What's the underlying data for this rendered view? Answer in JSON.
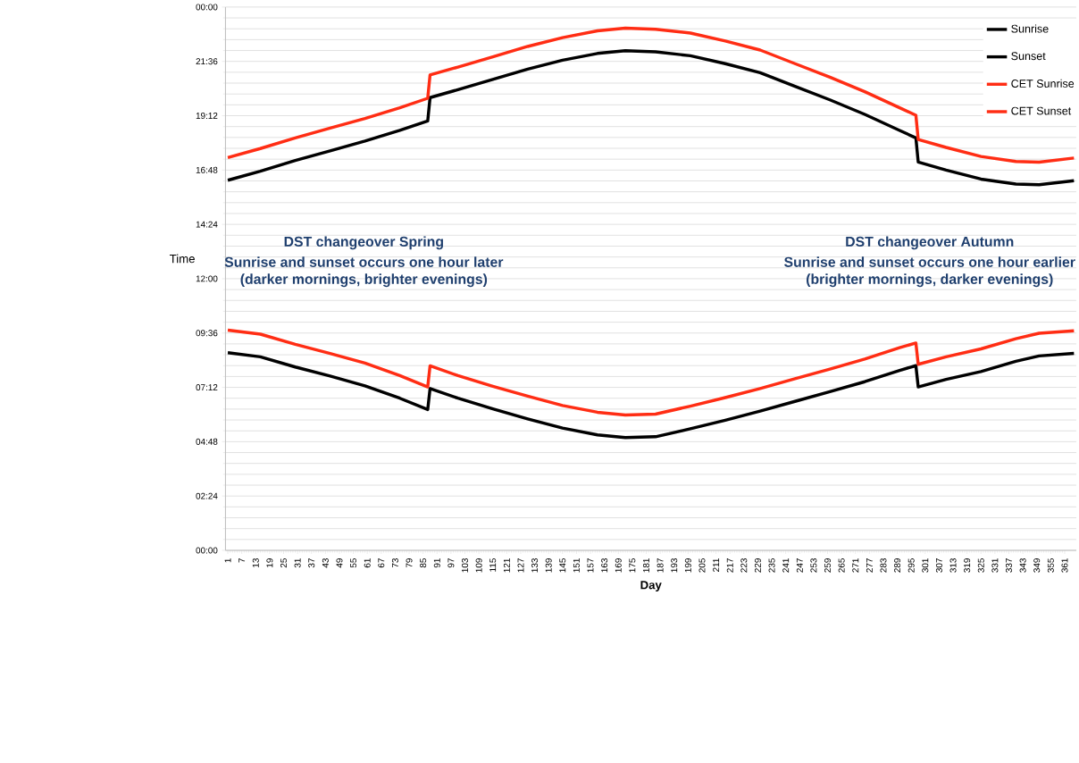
{
  "chart_data": {
    "type": "line",
    "x": [
      1,
      15,
      30,
      45,
      60,
      75,
      87,
      88,
      100,
      115,
      130,
      145,
      160,
      172,
      185,
      200,
      215,
      230,
      245,
      260,
      275,
      290,
      297,
      298,
      310,
      325,
      340,
      350,
      365
    ],
    "series": [
      {
        "name": "Sunrise",
        "color": "#000000",
        "values": [
          8.73,
          8.55,
          8.1,
          7.7,
          7.27,
          6.72,
          6.22,
          7.15,
          6.72,
          6.25,
          5.81,
          5.4,
          5.1,
          4.98,
          5.02,
          5.37,
          5.75,
          6.15,
          6.58,
          7.01,
          7.45,
          7.95,
          8.16,
          7.22,
          7.55,
          7.9,
          8.35,
          8.59,
          8.7
        ]
      },
      {
        "name": "Sunset",
        "color": "#000000",
        "values": [
          16.35,
          16.75,
          17.22,
          17.65,
          18.08,
          18.55,
          18.97,
          20.0,
          20.35,
          20.8,
          21.26,
          21.65,
          21.95,
          22.07,
          22.02,
          21.85,
          21.5,
          21.1,
          20.5,
          19.9,
          19.26,
          18.55,
          18.22,
          17.15,
          16.8,
          16.4,
          16.18,
          16.15,
          16.33
        ]
      },
      {
        "name": "CET Sunrise",
        "color": "#ff2d14",
        "values": [
          9.73,
          9.55,
          9.1,
          8.7,
          8.27,
          7.72,
          7.22,
          8.15,
          7.72,
          7.25,
          6.81,
          6.4,
          6.1,
          5.98,
          6.02,
          6.37,
          6.75,
          7.15,
          7.58,
          8.01,
          8.45,
          8.95,
          9.16,
          8.22,
          8.55,
          8.9,
          9.35,
          9.59,
          9.7
        ]
      },
      {
        "name": "CET Sunset",
        "color": "#ff2d14",
        "values": [
          17.35,
          17.75,
          18.22,
          18.65,
          19.08,
          19.55,
          19.97,
          21.0,
          21.35,
          21.8,
          22.26,
          22.65,
          22.95,
          23.07,
          23.02,
          22.85,
          22.5,
          22.1,
          21.5,
          20.9,
          20.26,
          19.55,
          19.22,
          18.15,
          17.8,
          17.4,
          17.18,
          17.15,
          17.33
        ]
      }
    ],
    "xlabel": "Day",
    "ylabel": "Time",
    "xlim": [
      0,
      366
    ],
    "xticks": [
      1,
      7,
      13,
      19,
      25,
      31,
      37,
      43,
      49,
      55,
      61,
      67,
      73,
      79,
      85,
      91,
      97,
      103,
      109,
      115,
      121,
      127,
      133,
      139,
      145,
      151,
      157,
      163,
      169,
      175,
      181,
      187,
      193,
      199,
      205,
      211,
      217,
      223,
      229,
      235,
      241,
      247,
      253,
      259,
      265,
      271,
      277,
      283,
      289,
      295,
      301,
      307,
      313,
      319,
      325,
      331,
      337,
      343,
      349,
      355,
      361
    ],
    "ylim": [
      0,
      24
    ],
    "yticks": [
      {
        "value": 0,
        "label": "00:00"
      },
      {
        "value": 2.4,
        "label": "02:24"
      },
      {
        "value": 4.8,
        "label": "04:48"
      },
      {
        "value": 7.2,
        "label": "07:12"
      },
      {
        "value": 9.6,
        "label": "09:36"
      },
      {
        "value": 12,
        "label": "12:00"
      },
      {
        "value": 14.4,
        "label": "14:24"
      },
      {
        "value": 16.8,
        "label": "16:48"
      },
      {
        "value": 19.2,
        "label": "19:12"
      },
      {
        "value": 21.6,
        "label": "21:36"
      },
      {
        "value": 24,
        "label": "00:00"
      }
    ],
    "annotations": [
      "DST changeover Spring",
      "Sunrise and sunset occurs one hour later",
      "(darker mornings, brighter evenings)",
      "DST changeover Autumn",
      "Sunrise and sunset occurs one hour earlier",
      "(brighter mornings, darker evenings)"
    ],
    "grid": "y",
    "legend": "top right"
  }
}
